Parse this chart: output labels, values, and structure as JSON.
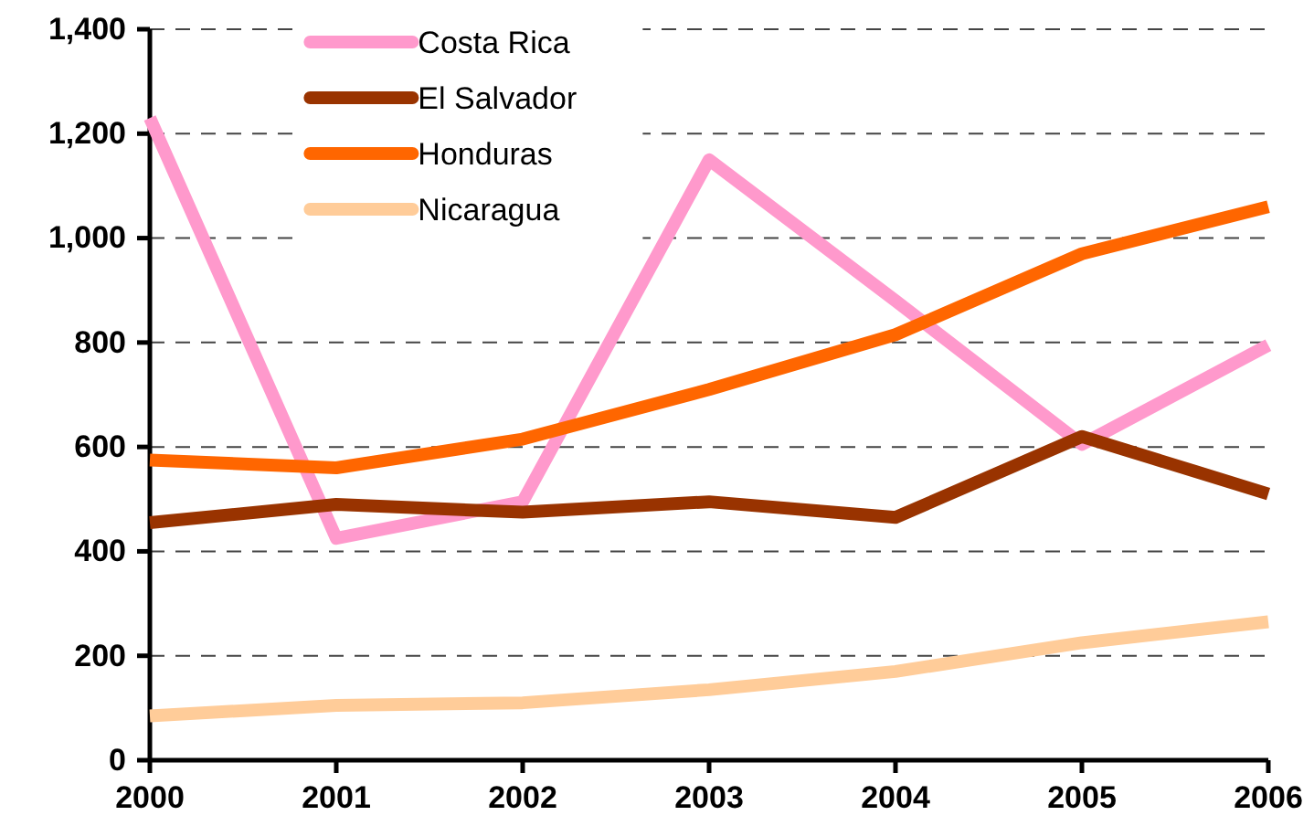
{
  "chart_data": {
    "type": "line",
    "x": [
      2000,
      2001,
      2002,
      2003,
      2004,
      2005,
      2006
    ],
    "xlim": [
      2000,
      2006
    ],
    "xticks": [
      2000,
      2001,
      2002,
      2003,
      2004,
      2005,
      2006
    ],
    "ylim": [
      0,
      1400
    ],
    "yticks": [
      0,
      200,
      400,
      600,
      800,
      {
        "value": 1000,
        "label": "1,000"
      },
      {
        "value": 1200,
        "label": "1,200"
      },
      {
        "value": 1400,
        "label": "1,400"
      }
    ],
    "grid": "y",
    "legend": "top left",
    "series": [
      {
        "name": "Costa Rica",
        "color": "#ff99cc",
        "values": [
          1230,
          425,
          495,
          1150,
          880,
          605,
          795
        ]
      },
      {
        "name": "El Salvador",
        "color": "#993300",
        "values": [
          455,
          490,
          475,
          495,
          465,
          620,
          510
        ]
      },
      {
        "name": "Honduras",
        "color": "#ff6600",
        "values": [
          575,
          560,
          615,
          710,
          815,
          970,
          1060
        ]
      },
      {
        "name": "Nicaragua",
        "color": "#ffcc99",
        "values": [
          85,
          105,
          110,
          135,
          170,
          225,
          265
        ]
      }
    ]
  }
}
